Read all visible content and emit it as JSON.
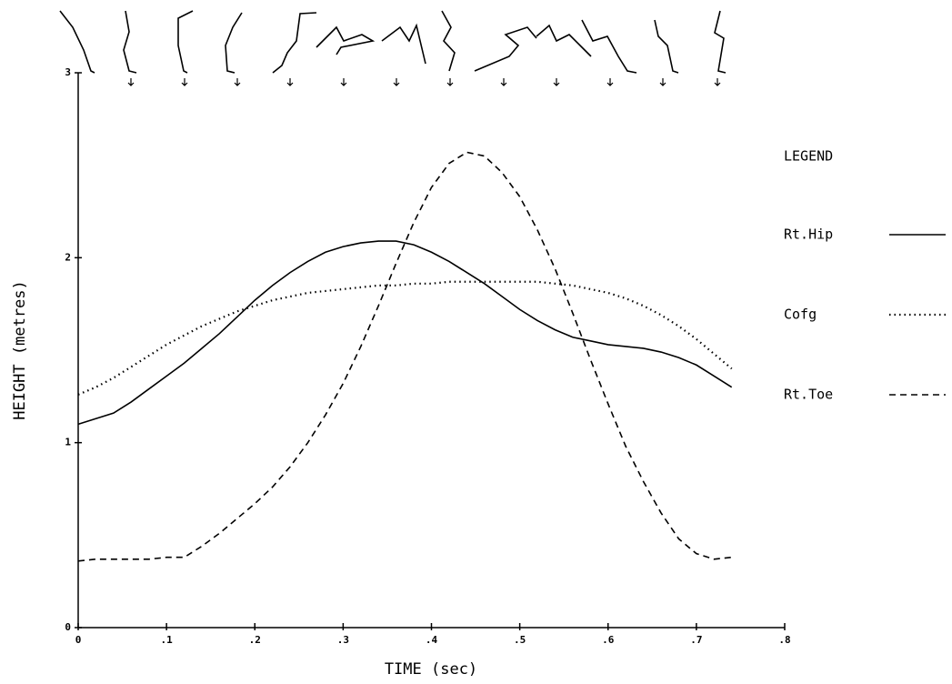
{
  "chart_data": {
    "type": "line",
    "xlabel": "TIME (sec)",
    "ylabel": "HEIGHT (metres)",
    "legend_title": "LEGEND",
    "legend": "right",
    "x": [
      0,
      0.02,
      0.04,
      0.06,
      0.08,
      0.1,
      0.12,
      0.14,
      0.16,
      0.18,
      0.2,
      0.22,
      0.24,
      0.26,
      0.28,
      0.3,
      0.32,
      0.34,
      0.36,
      0.38,
      0.4,
      0.42,
      0.44,
      0.46,
      0.48,
      0.5,
      0.52,
      0.54,
      0.56,
      0.58,
      0.6,
      0.62,
      0.64,
      0.66,
      0.68,
      0.7,
      0.72,
      0.74
    ],
    "series": [
      {
        "name": "Rt.Hip",
        "color": "#000000",
        "style": "solid",
        "values": [
          1.1,
          1.13,
          1.16,
          1.22,
          1.29,
          1.36,
          1.43,
          1.51,
          1.59,
          1.68,
          1.77,
          1.85,
          1.92,
          1.98,
          2.03,
          2.06,
          2.08,
          2.09,
          2.09,
          2.07,
          2.03,
          1.98,
          1.92,
          1.86,
          1.79,
          1.72,
          1.66,
          1.61,
          1.57,
          1.55,
          1.53,
          1.52,
          1.51,
          1.49,
          1.46,
          1.42,
          1.36,
          1.3
        ]
      },
      {
        "name": "Cofg",
        "color": "#000000",
        "style": "dotted",
        "values": [
          1.26,
          1.3,
          1.35,
          1.41,
          1.47,
          1.53,
          1.58,
          1.63,
          1.67,
          1.71,
          1.74,
          1.77,
          1.79,
          1.81,
          1.82,
          1.83,
          1.84,
          1.85,
          1.85,
          1.86,
          1.86,
          1.87,
          1.87,
          1.87,
          1.87,
          1.87,
          1.87,
          1.86,
          1.85,
          1.83,
          1.81,
          1.78,
          1.74,
          1.69,
          1.63,
          1.56,
          1.48,
          1.4
        ]
      },
      {
        "name": "Rt.Toe",
        "color": "#000000",
        "style": "dashed",
        "values": [
          0.36,
          0.37,
          0.37,
          0.37,
          0.37,
          0.38,
          0.38,
          0.44,
          0.51,
          0.59,
          0.67,
          0.76,
          0.87,
          1.0,
          1.15,
          1.32,
          1.52,
          1.74,
          1.97,
          2.19,
          2.38,
          2.51,
          2.57,
          2.55,
          2.46,
          2.33,
          2.15,
          1.94,
          1.7,
          1.45,
          1.21,
          0.98,
          0.79,
          0.62,
          0.48,
          0.4,
          0.37,
          0.38
        ]
      }
    ],
    "xlim": [
      0,
      0.8
    ],
    "xticks": [
      0,
      {
        "value": 0.1,
        "label": ".1"
      },
      {
        "value": 0.2,
        "label": ".2"
      },
      {
        "value": 0.3,
        "label": ".3"
      },
      {
        "value": 0.4,
        "label": ".4"
      },
      {
        "value": 0.5,
        "label": ".5"
      },
      {
        "value": 0.6,
        "label": ".6"
      },
      {
        "value": 0.7,
        "label": ".7"
      },
      {
        "value": 0.8,
        "label": ".8"
      }
    ],
    "ylim": [
      0,
      3
    ],
    "yticks": [
      0,
      1,
      2,
      3
    ],
    "grid": false
  }
}
